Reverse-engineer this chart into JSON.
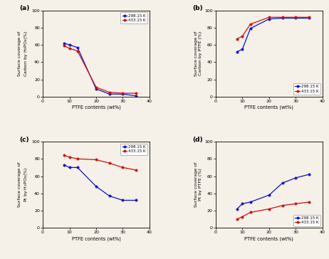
{
  "panel_labels": [
    "(a)",
    "(b)",
    "(c)",
    "(d)"
  ],
  "x": [
    8,
    10,
    13,
    20,
    25,
    30,
    35
  ],
  "a_blue": [
    62,
    60,
    57,
    9,
    3,
    3,
    1
  ],
  "a_red": [
    59,
    56,
    53,
    11,
    5,
    4,
    4
  ],
  "b_blue": [
    52,
    55,
    79,
    90,
    91,
    91,
    91
  ],
  "b_red": [
    67,
    70,
    84,
    92,
    92,
    92,
    92
  ],
  "c_blue": [
    73,
    70,
    70,
    48,
    37,
    32,
    32
  ],
  "c_red": [
    84,
    82,
    80,
    79,
    75,
    70,
    67
  ],
  "d_blue": [
    22,
    28,
    30,
    38,
    52,
    58,
    62
  ],
  "d_red": [
    10,
    13,
    18,
    22,
    26,
    28,
    30
  ],
  "blue_color": "#1010cc",
  "red_color": "#cc1010",
  "legend_labels": [
    "298.15 K",
    "433.15 K"
  ],
  "ylabels_line1": [
    "Surface coverage of",
    "Surface coverage of",
    "Surface coverage of",
    "Surface coverage of"
  ],
  "ylabels_line2": [
    "Carbon by H$_3$PO$_4$(%)",
    "Carbon by PTFE (%)",
    "Pt by H$_3$PO$_4$(%)",
    "Pt by PTFE (%)"
  ],
  "xlabel": "PTFE contents (wt%)",
  "xlim": [
    0,
    40
  ],
  "ylim": [
    0,
    100
  ],
  "xticks": [
    0,
    10,
    20,
    30,
    40
  ],
  "yticks": [
    0,
    20,
    40,
    60,
    80,
    100
  ],
  "bg_color": "#f5f0e8",
  "legend_locs": [
    "upper right",
    "lower right",
    "upper right",
    "lower right"
  ]
}
